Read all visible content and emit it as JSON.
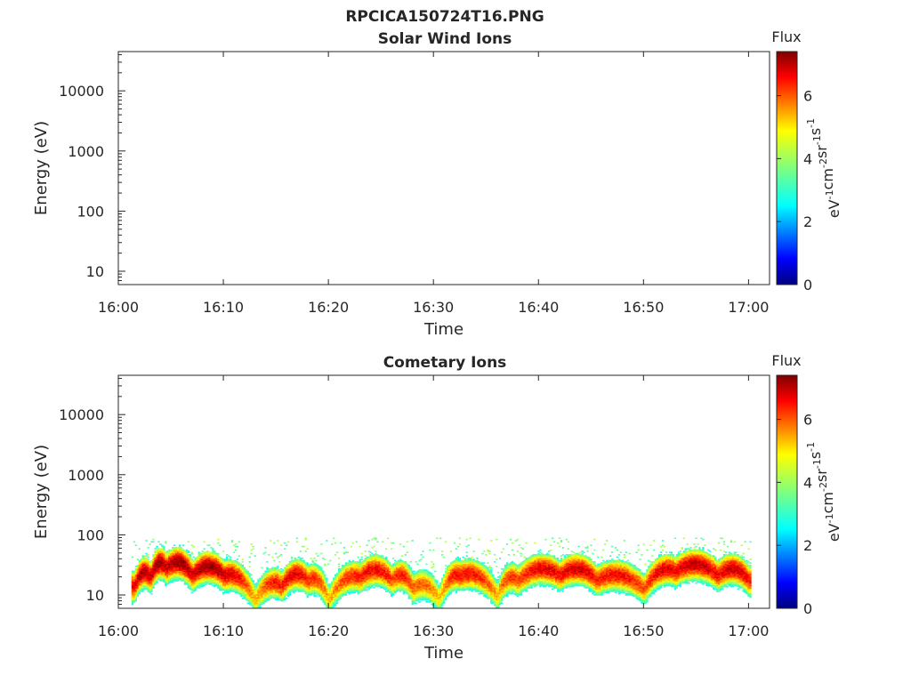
{
  "figure_title": "RPCICA150724T16.PNG",
  "colors": {
    "axis": "#262626",
    "colormap": [
      "#00007f",
      "#0000ff",
      "#007fff",
      "#00ffff",
      "#7fff7f",
      "#ffff00",
      "#ff7f00",
      "#ff0000",
      "#7f0000"
    ]
  },
  "chart_data": [
    {
      "type": "heatmap",
      "title": "Solar Wind Ions",
      "xlabel": "Time",
      "ylabel": "Energy (eV)",
      "x_ticks": [
        "16:00",
        "16:10",
        "16:20",
        "16:30",
        "16:40",
        "16:50",
        "17:00"
      ],
      "y_ticks": [
        "10",
        "100",
        "1000",
        "10000"
      ],
      "y_scale": "log",
      "xlim": [
        "16:00",
        "17:02"
      ],
      "ylim": [
        6,
        45000
      ],
      "colorbar": {
        "title": "Flux",
        "label_parts": [
          "eV",
          "-1",
          "cm",
          "-2",
          "sr",
          "-1",
          "s",
          "-1"
        ],
        "ticks": [
          "0",
          "2",
          "4",
          "6"
        ],
        "range": [
          0,
          7.4
        ]
      },
      "values": []
    },
    {
      "type": "heatmap",
      "title": "Cometary Ions",
      "xlabel": "Time",
      "ylabel": "Energy (eV)",
      "x_ticks": [
        "16:00",
        "16:10",
        "16:20",
        "16:30",
        "16:40",
        "16:50",
        "17:00"
      ],
      "y_ticks": [
        "10",
        "100",
        "1000",
        "10000"
      ],
      "y_scale": "log",
      "xlim": [
        "16:00",
        "17:02"
      ],
      "ylim": [
        6,
        45000
      ],
      "colorbar": {
        "title": "Flux",
        "label_parts": [
          "eV",
          "-1",
          "cm",
          "-2",
          "sr",
          "-1",
          "s",
          "-1"
        ],
        "ticks": [
          "0",
          "2",
          "4",
          "6"
        ],
        "range": [
          0,
          7.4
        ]
      },
      "series": [
        {
          "peak_energy_eV": [
            {
              "t": "16:01:30",
              "energy": 20,
              "flux": 7.0
            },
            {
              "t": "16:03:00",
              "energy": 28,
              "flux": 7.2
            },
            {
              "t": "16:04:30",
              "energy": 40,
              "flux": 7.3
            },
            {
              "t": "16:07:00",
              "energy": 30,
              "flux": 7.2
            },
            {
              "t": "16:10:00",
              "energy": 30,
              "flux": 7.3
            },
            {
              "t": "16:13:00",
              "energy": 12,
              "flux": 5.5
            },
            {
              "t": "16:15:30",
              "energy": 20,
              "flux": 6.8
            },
            {
              "t": "16:18:00",
              "energy": 25,
              "flux": 6.6
            },
            {
              "t": "16:20:00",
              "energy": 12,
              "flux": 5.4
            },
            {
              "t": "16:23:00",
              "energy": 28,
              "flux": 6.7
            },
            {
              "t": "16:26:00",
              "energy": 25,
              "flux": 6.4
            },
            {
              "t": "16:28:00",
              "energy": 18,
              "flux": 6.2
            },
            {
              "t": "16:30:30",
              "energy": 12,
              "flux": 5.3
            },
            {
              "t": "16:32:30",
              "energy": 30,
              "flux": 6.9
            },
            {
              "t": "16:36:00",
              "energy": 14,
              "flux": 5.6
            },
            {
              "t": "16:38:00",
              "energy": 25,
              "flux": 6.4
            },
            {
              "t": "16:42:00",
              "energy": 30,
              "flux": 6.9
            },
            {
              "t": "16:45:30",
              "energy": 25,
              "flux": 6.7
            },
            {
              "t": "16:50:00",
              "energy": 18,
              "flux": 6.3
            },
            {
              "t": "16:53:00",
              "energy": 35,
              "flux": 7.0
            },
            {
              "t": "16:57:00",
              "energy": 30,
              "flux": 6.9
            },
            {
              "t": "17:00:00",
              "energy": 25,
              "flux": 6.8
            }
          ]
        }
      ]
    }
  ]
}
